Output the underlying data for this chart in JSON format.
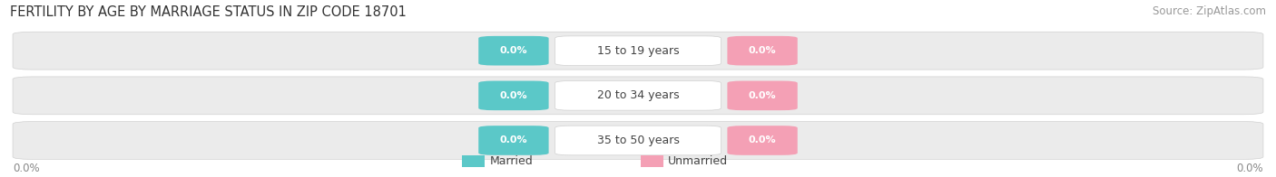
{
  "title": "FERTILITY BY AGE BY MARRIAGE STATUS IN ZIP CODE 18701",
  "source": "Source: ZipAtlas.com",
  "categories": [
    "15 to 19 years",
    "20 to 34 years",
    "35 to 50 years"
  ],
  "married_values": [
    0.0,
    0.0,
    0.0
  ],
  "unmarried_values": [
    0.0,
    0.0,
    0.0
  ],
  "married_color": "#5BC8C8",
  "unmarried_color": "#F4A0B5",
  "bar_bg_color": "#EBEBEB",
  "bar_border_color": "#D0D0D0",
  "title_fontsize": 10.5,
  "source_fontsize": 8.5,
  "label_fontsize": 8.5,
  "category_fontsize": 9,
  "legend_fontsize": 9,
  "value_fontsize": 8
}
